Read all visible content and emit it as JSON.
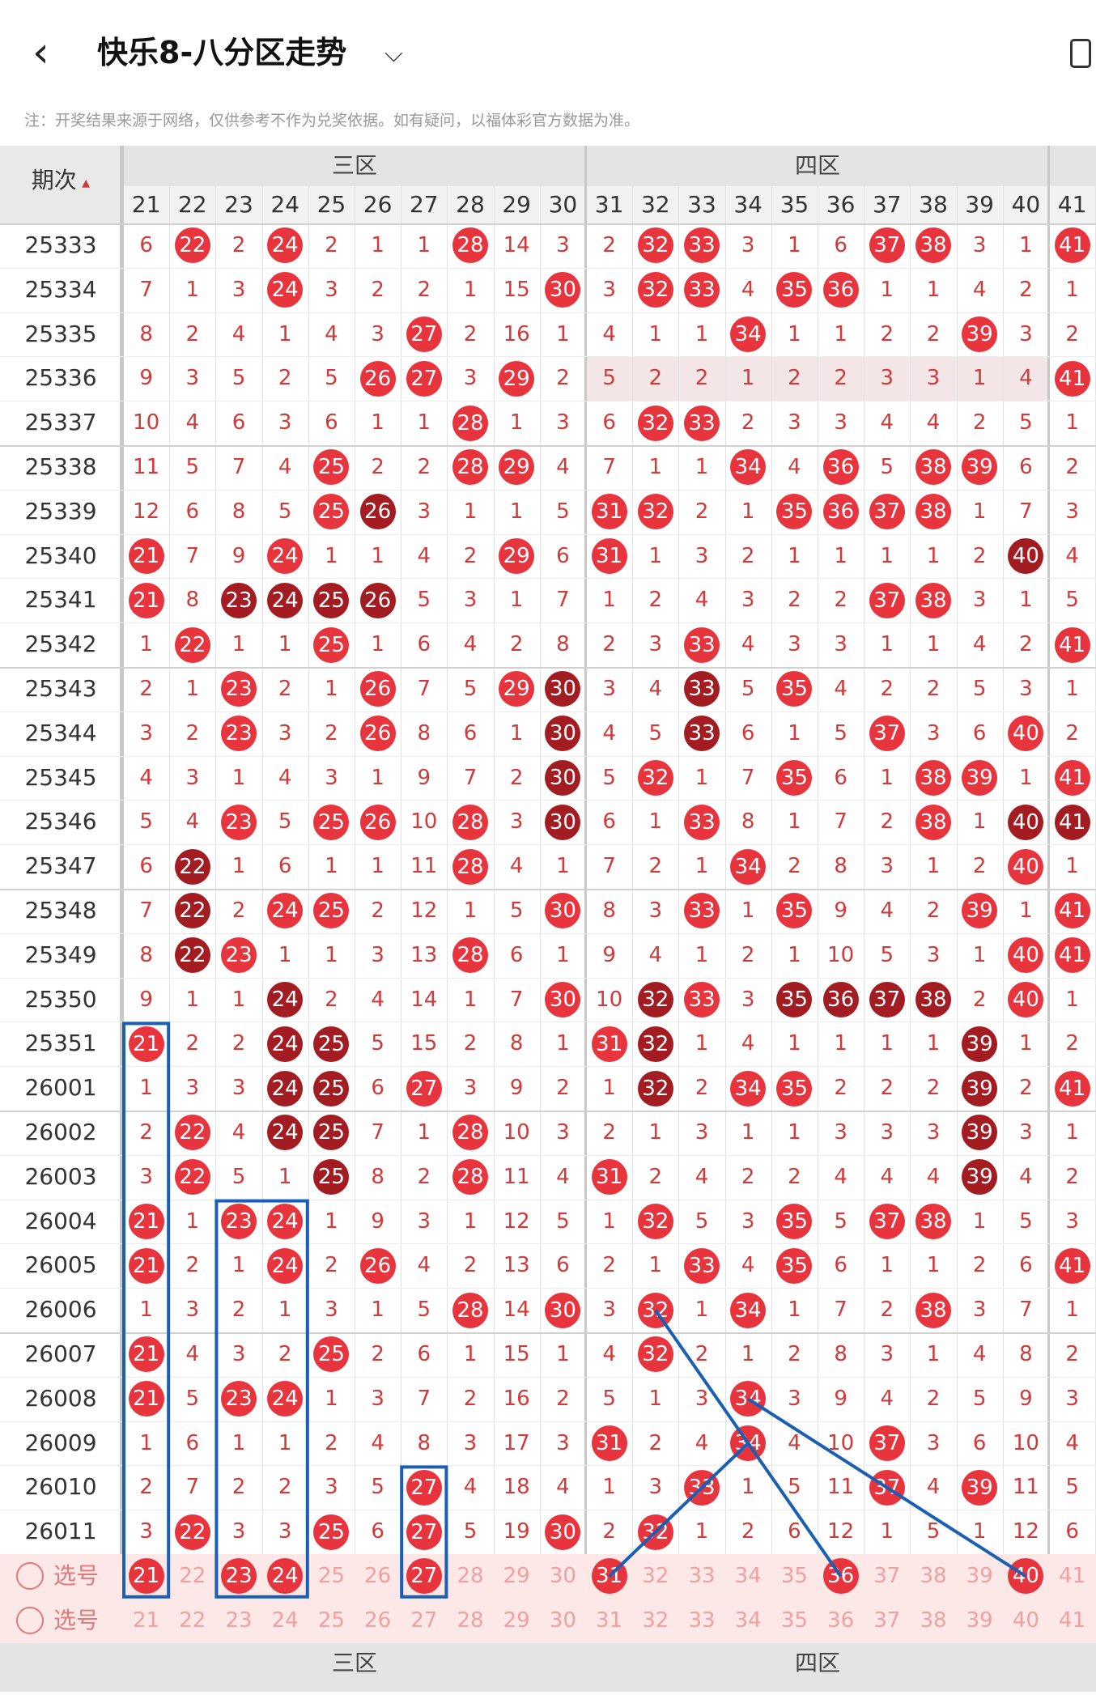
{
  "header": {
    "title": "快乐8-八分区走势",
    "note": "注：开奖结果来源于网络，仅供参考不作为兑奖依据。如有疑问，以福体彩官方数据为准。"
  },
  "table": {
    "issue_header": "期次",
    "sort_icon": "sort-arrow-icon",
    "zones": [
      {
        "label": "三区",
        "start": 0,
        "end": 10
      },
      {
        "label": "四区",
        "start": 10,
        "end": 20
      }
    ],
    "columns": [
      "21",
      "22",
      "23",
      "24",
      "25",
      "26",
      "27",
      "28",
      "29",
      "30",
      "31",
      "32",
      "33",
      "34",
      "35",
      "36",
      "37",
      "38",
      "39",
      "40",
      "41"
    ],
    "periods": [
      "25333",
      "25334",
      "25335",
      "25336",
      "25337",
      "25338",
      "25339",
      "25340",
      "25341",
      "25342",
      "25343",
      "25344",
      "25345",
      "25346",
      "25347",
      "25348",
      "25349",
      "25350",
      "25351",
      "26001",
      "26002",
      "26003",
      "26004",
      "26005",
      "26006",
      "26007",
      "26008",
      "26009",
      "26010",
      "26011"
    ],
    "rows": [
      [
        "6",
        "22",
        "2",
        "24",
        "2",
        "1",
        "1",
        "28",
        "14",
        "3",
        "2",
        "32",
        "33",
        "3",
        "1",
        "6",
        "37",
        "38",
        "3",
        "1",
        "41"
      ],
      [
        "7",
        "1",
        "3",
        "24",
        "3",
        "2",
        "2",
        "1",
        "15",
        "30",
        "3",
        "32",
        "33",
        "4",
        "35",
        "36",
        "1",
        "1",
        "4",
        "2",
        "1"
      ],
      [
        "8",
        "2",
        "4",
        "1",
        "4",
        "3",
        "27",
        "2",
        "16",
        "1",
        "4",
        "1",
        "1",
        "34",
        "1",
        "1",
        "2",
        "2",
        "39",
        "3",
        "2"
      ],
      [
        "9",
        "3",
        "5",
        "2",
        "5",
        "26",
        "27",
        "3",
        "29",
        "2",
        "5",
        "2",
        "2",
        "1",
        "2",
        "2",
        "3",
        "3",
        "1",
        "4",
        "41"
      ],
      [
        "10",
        "4",
        "6",
        "3",
        "6",
        "1",
        "1",
        "28",
        "1",
        "3",
        "6",
        "32",
        "33",
        "2",
        "3",
        "3",
        "4",
        "4",
        "2",
        "5",
        "1"
      ],
      [
        "11",
        "5",
        "7",
        "4",
        "25",
        "2",
        "2",
        "28",
        "29",
        "4",
        "7",
        "1",
        "1",
        "34",
        "4",
        "36",
        "5",
        "38",
        "39",
        "6",
        "2"
      ],
      [
        "12",
        "6",
        "8",
        "5",
        "25",
        "26",
        "3",
        "1",
        "1",
        "5",
        "31",
        "32",
        "2",
        "1",
        "35",
        "36",
        "37",
        "38",
        "1",
        "7",
        "3"
      ],
      [
        "21",
        "7",
        "9",
        "24",
        "1",
        "1",
        "4",
        "2",
        "29",
        "6",
        "31",
        "1",
        "3",
        "2",
        "1",
        "1",
        "1",
        "1",
        "2",
        "40",
        "4"
      ],
      [
        "21",
        "8",
        "23",
        "24",
        "25",
        "26",
        "5",
        "3",
        "1",
        "7",
        "1",
        "2",
        "4",
        "3",
        "2",
        "2",
        "37",
        "38",
        "3",
        "1",
        "5"
      ],
      [
        "1",
        "22",
        "1",
        "1",
        "25",
        "1",
        "6",
        "4",
        "2",
        "8",
        "2",
        "3",
        "33",
        "4",
        "3",
        "3",
        "1",
        "1",
        "4",
        "2",
        "41"
      ],
      [
        "2",
        "1",
        "23",
        "2",
        "1",
        "26",
        "7",
        "5",
        "29",
        "30",
        "3",
        "4",
        "33",
        "5",
        "35",
        "4",
        "2",
        "2",
        "5",
        "3",
        "1"
      ],
      [
        "3",
        "2",
        "23",
        "3",
        "2",
        "26",
        "8",
        "6",
        "1",
        "30",
        "4",
        "5",
        "33",
        "6",
        "1",
        "5",
        "37",
        "3",
        "6",
        "40",
        "2"
      ],
      [
        "4",
        "3",
        "1",
        "4",
        "3",
        "1",
        "9",
        "7",
        "2",
        "30",
        "5",
        "32",
        "1",
        "7",
        "35",
        "6",
        "1",
        "38",
        "39",
        "1",
        "41"
      ],
      [
        "5",
        "4",
        "23",
        "5",
        "25",
        "26",
        "10",
        "28",
        "3",
        "30",
        "6",
        "1",
        "33",
        "8",
        "1",
        "7",
        "2",
        "38",
        "1",
        "40",
        "41"
      ],
      [
        "6",
        "22",
        "1",
        "6",
        "1",
        "1",
        "11",
        "28",
        "4",
        "1",
        "7",
        "2",
        "1",
        "34",
        "2",
        "8",
        "3",
        "1",
        "2",
        "40",
        "1"
      ],
      [
        "7",
        "22",
        "2",
        "24",
        "25",
        "2",
        "12",
        "1",
        "5",
        "30",
        "8",
        "3",
        "33",
        "1",
        "35",
        "9",
        "4",
        "2",
        "39",
        "1",
        "41"
      ],
      [
        "8",
        "22",
        "23",
        "1",
        "1",
        "3",
        "13",
        "28",
        "6",
        "1",
        "9",
        "4",
        "1",
        "2",
        "1",
        "10",
        "5",
        "3",
        "1",
        "40",
        "41"
      ],
      [
        "9",
        "1",
        "1",
        "24",
        "2",
        "4",
        "14",
        "1",
        "7",
        "30",
        "10",
        "32",
        "33",
        "3",
        "35",
        "36",
        "37",
        "38",
        "2",
        "40",
        "1"
      ],
      [
        "21",
        "2",
        "2",
        "24",
        "25",
        "5",
        "15",
        "2",
        "8",
        "1",
        "31",
        "32",
        "1",
        "4",
        "1",
        "1",
        "1",
        "1",
        "39",
        "1",
        "2"
      ],
      [
        "1",
        "3",
        "3",
        "24",
        "25",
        "6",
        "27",
        "3",
        "9",
        "2",
        "1",
        "32",
        "2",
        "34",
        "35",
        "2",
        "2",
        "2",
        "39",
        "2",
        "41"
      ],
      [
        "2",
        "22",
        "4",
        "24",
        "25",
        "7",
        "1",
        "28",
        "10",
        "3",
        "2",
        "1",
        "3",
        "1",
        "1",
        "3",
        "3",
        "3",
        "39",
        "3",
        "1"
      ],
      [
        "3",
        "22",
        "5",
        "1",
        "25",
        "8",
        "2",
        "28",
        "11",
        "4",
        "31",
        "2",
        "4",
        "2",
        "2",
        "4",
        "4",
        "4",
        "39",
        "4",
        "2"
      ],
      [
        "21",
        "1",
        "23",
        "24",
        "1",
        "9",
        "3",
        "1",
        "12",
        "5",
        "1",
        "32",
        "5",
        "3",
        "35",
        "5",
        "37",
        "38",
        "1",
        "5",
        "3"
      ],
      [
        "21",
        "2",
        "1",
        "24",
        "2",
        "26",
        "4",
        "2",
        "13",
        "6",
        "2",
        "1",
        "33",
        "4",
        "35",
        "6",
        "1",
        "1",
        "2",
        "6",
        "41"
      ],
      [
        "1",
        "3",
        "2",
        "1",
        "3",
        "1",
        "5",
        "28",
        "14",
        "30",
        "3",
        "32",
        "1",
        "34",
        "1",
        "7",
        "2",
        "38",
        "3",
        "7",
        "1"
      ],
      [
        "21",
        "4",
        "3",
        "2",
        "25",
        "2",
        "6",
        "1",
        "15",
        "1",
        "4",
        "32",
        "2",
        "1",
        "2",
        "8",
        "3",
        "1",
        "4",
        "8",
        "2"
      ],
      [
        "21",
        "5",
        "23",
        "24",
        "1",
        "3",
        "7",
        "2",
        "16",
        "2",
        "5",
        "1",
        "3",
        "34",
        "3",
        "9",
        "4",
        "2",
        "5",
        "9",
        "3"
      ],
      [
        "1",
        "6",
        "1",
        "1",
        "2",
        "4",
        "8",
        "3",
        "17",
        "3",
        "31",
        "2",
        "4",
        "34",
        "4",
        "10",
        "37",
        "3",
        "6",
        "10",
        "4"
      ],
      [
        "2",
        "7",
        "2",
        "2",
        "3",
        "5",
        "27",
        "4",
        "18",
        "4",
        "1",
        "3",
        "33",
        "1",
        "5",
        "11",
        "37",
        "4",
        "39",
        "11",
        "5"
      ],
      [
        "3",
        "22",
        "3",
        "3",
        "25",
        "6",
        "27",
        "5",
        "19",
        "30",
        "2",
        "32",
        "1",
        "2",
        "6",
        "12",
        "1",
        "5",
        "1",
        "12",
        "6"
      ]
    ],
    "dark_hits": [
      [
        6,
        26
      ],
      [
        8,
        26
      ],
      [
        7,
        28
      ],
      [
        7,
        34
      ],
      [
        7,
        36
      ],
      [
        7,
        38
      ],
      [
        7,
        39
      ],
      [
        7,
        40
      ],
      [
        8,
        22
      ],
      [
        8,
        23
      ],
      [
        8,
        24
      ],
      [
        8,
        25
      ],
      [
        9,
        34
      ],
      [
        10,
        33
      ],
      [
        10,
        30
      ],
      [
        11,
        30
      ],
      [
        11,
        33
      ],
      [
        12,
        30
      ],
      [
        13,
        30
      ],
      [
        13,
        40
      ],
      [
        13,
        41
      ],
      [
        14,
        22
      ],
      [
        15,
        22
      ],
      [
        16,
        22
      ],
      [
        17,
        24
      ],
      [
        17,
        32
      ],
      [
        17,
        35
      ],
      [
        17,
        36
      ],
      [
        17,
        37
      ],
      [
        17,
        38
      ],
      [
        18,
        24
      ],
      [
        18,
        25
      ],
      [
        18,
        32
      ],
      [
        18,
        39
      ],
      [
        19,
        24
      ],
      [
        19,
        25
      ],
      [
        19,
        32
      ],
      [
        19,
        39
      ],
      [
        20,
        24
      ],
      [
        20,
        25
      ],
      [
        20,
        39
      ],
      [
        21,
        25
      ],
      [
        21,
        39
      ]
    ],
    "select_rows": [
      {
        "label": "选号",
        "selected": [
          "21",
          "23",
          "24",
          "27",
          "31",
          "36",
          "40"
        ]
      },
      {
        "label": "选号",
        "selected": []
      }
    ],
    "footer_zones": [
      "三区",
      "四区"
    ],
    "colors": {
      "red_ball": "#e8343d",
      "dark_ball": "#a31c22",
      "number_text": "#d23a3a",
      "annotation": "#1a5fb4",
      "select_bg": "#fde8e8"
    }
  }
}
